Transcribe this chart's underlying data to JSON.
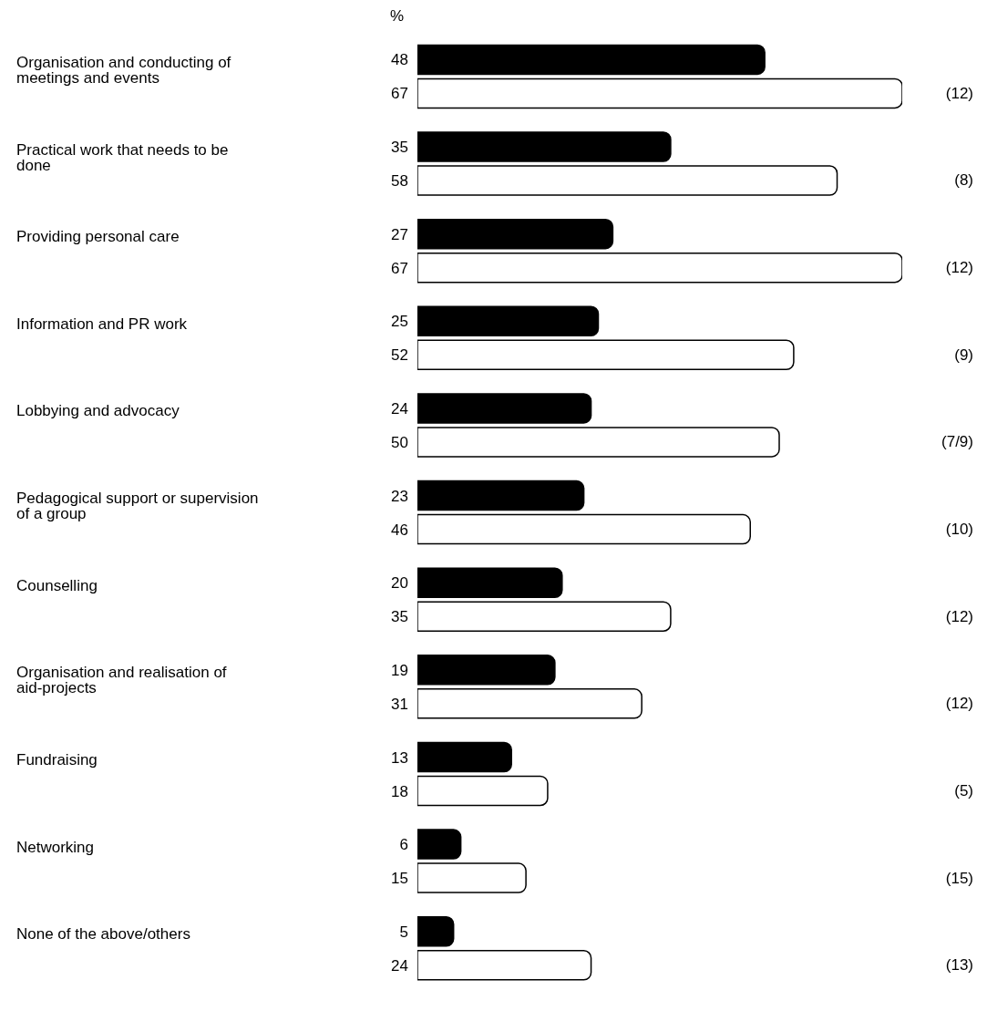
{
  "chart_data": {
    "type": "bar",
    "orientation": "horizontal",
    "data_labels": true,
    "categories": [
      "Organisation and conducting of meetings and events",
      "Practical work that needs to be done",
      "Providing personal care",
      "Information and PR work",
      "Lobbying and advocacy",
      "Pedagogical support or supervision of a group",
      "Counselling",
      "Organisation and realisation of aid-projects",
      "Fundraising",
      "Networking",
      "None of the above/others"
    ],
    "series": [
      {
        "color": "#000000",
        "values": [
          48,
          35,
          27,
          25,
          24,
          23,
          20,
          19,
          13,
          6,
          5
        ]
      },
      {
        "color": "#ffffff",
        "values": [
          67,
          58,
          67,
          52,
          50,
          46,
          35,
          31,
          18,
          15,
          24
        ]
      }
    ],
    "annotations": [
      "%",
      "(12)",
      "(8)",
      "(12)",
      "(9)",
      "(7/9)",
      "(10)",
      "(12)",
      "(12)",
      "(5)",
      "(15)",
      "(13)"
    ]
  }
}
